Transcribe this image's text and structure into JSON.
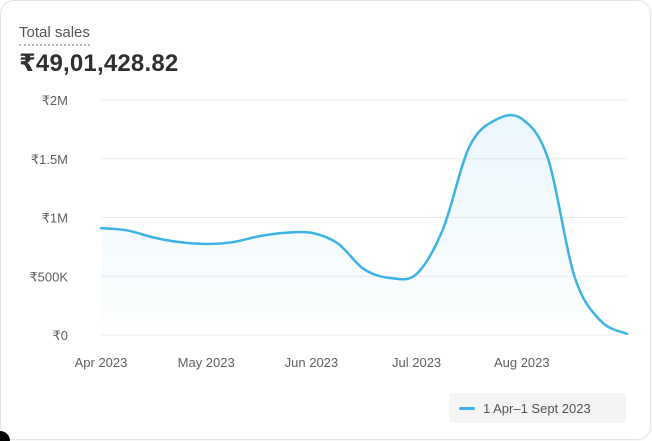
{
  "card": {
    "title": "Total sales",
    "total_value": "₹49,01,428.82"
  },
  "colors": {
    "line": "#3eb3e6",
    "grid": "#ebebeb",
    "legend_bg": "#f4f4f4"
  },
  "legend": {
    "label": "1 Apr–1 Sept 2023"
  },
  "chart_data": {
    "type": "line",
    "title": "Total sales",
    "xlabel": "",
    "ylabel": "",
    "ylim": [
      0,
      2000000
    ],
    "y_ticks": [
      "₹0",
      "₹500K",
      "₹1M",
      "₹1.5M",
      "₹2M"
    ],
    "y_tick_values": [
      0,
      500000,
      1000000,
      1500000,
      2000000
    ],
    "x_ticks": [
      "Apr 2023",
      "May 2023",
      "Jun 2023",
      "Jul 2023",
      "Aug 2023"
    ],
    "grid": true,
    "legend_position": "bottom-right",
    "series": [
      {
        "name": "1 Apr–1 Sept 2023",
        "x": [
          "2023-04-01",
          "2023-04-08",
          "2023-04-15",
          "2023-04-22",
          "2023-05-01",
          "2023-05-08",
          "2023-05-15",
          "2023-05-22",
          "2023-06-01",
          "2023-06-08",
          "2023-06-15",
          "2023-06-22",
          "2023-07-01",
          "2023-07-08",
          "2023-07-15",
          "2023-07-22",
          "2023-08-01",
          "2023-08-08",
          "2023-08-15",
          "2023-08-22",
          "2023-09-01"
        ],
        "values": [
          910000,
          890000,
          830000,
          790000,
          775000,
          790000,
          840000,
          870000,
          870000,
          780000,
          560000,
          485000,
          520000,
          900000,
          1600000,
          1830000,
          1840000,
          1500000,
          500000,
          120000,
          10000
        ]
      }
    ]
  }
}
